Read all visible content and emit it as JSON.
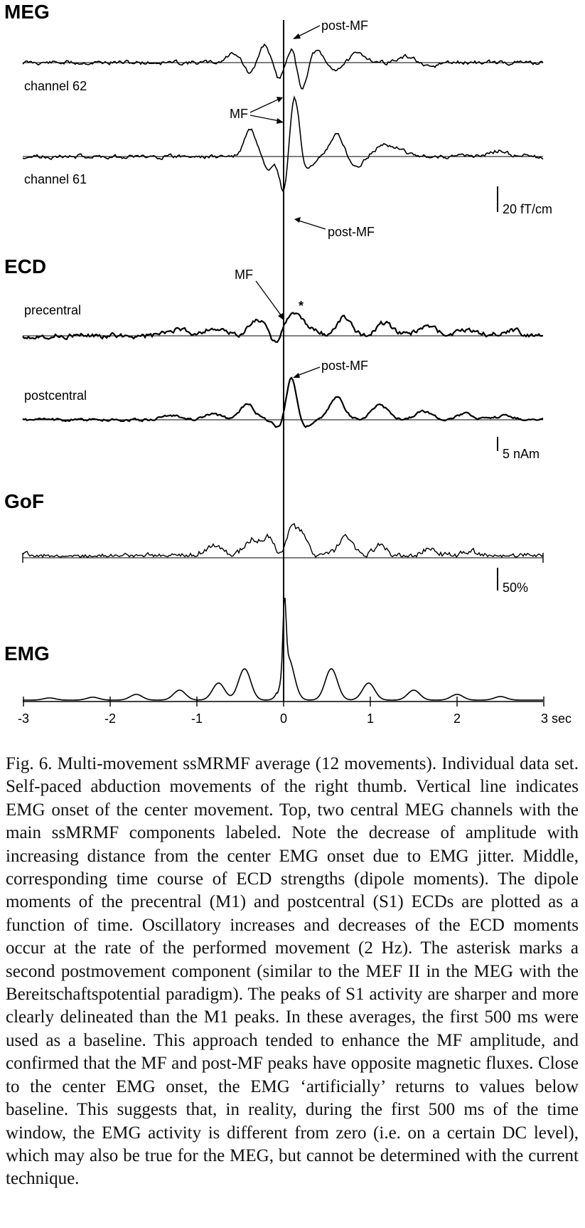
{
  "panels": {
    "meg": {
      "title": "MEG",
      "channels": [
        "channel 62",
        "channel 61"
      ],
      "labels": {
        "post_mf_top": "post-MF",
        "mf": "MF",
        "post_mf_bottom": "post-MF"
      },
      "scale": "20 fT/cm"
    },
    "ecd": {
      "title": "ECD",
      "sources": [
        "precentral",
        "postcentral"
      ],
      "labels": {
        "mf": "MF",
        "asterisk": "*",
        "post_mf": "post-MF"
      },
      "scale": "5 nAm"
    },
    "gof": {
      "title": "GoF",
      "scale": "50%"
    },
    "emg": {
      "title": "EMG"
    }
  },
  "axis": {
    "ticks": [
      -3,
      -2,
      -1,
      0,
      1,
      2,
      3
    ],
    "tick_labels": [
      "-3",
      "-2",
      "-1",
      "0",
      "1",
      "2",
      "3 sec"
    ]
  },
  "caption": "Fig. 6. Multi-movement ssMRMF average (12 movements). Individual data set. Self-paced abduction movements of the right thumb. Vertical line indicates EMG onset of the center movement. Top, two central MEG channels with the main ssMRMF components labeled. Note the decrease of amplitude with increasing distance from the center EMG onset due to EMG jitter. Middle, corresponding time course of ECD strengths (dipole moments). The dipole moments of the precentral (M1) and postcentral (S1) ECDs are plotted as a function of time. Oscillatory increases and decreases of the ECD moments occur at the rate of the performed movement (2 Hz). The asterisk marks a second postmovement component (similar to the MEF II in the MEG with the Bereitschaftspotential paradigm). The peaks of S1 activity are sharper and more clearly delineated than the M1 peaks. In these averages, the first 500 ms were used as a baseline. This approach tended to enhance the MF amplitude, and confirmed that the MF and post-MF peaks have opposite magnetic fluxes. Close to the center EMG onset, the EMG ‘artificially’ returns to values below baseline. This suggests that, in reality, during the first 500 ms of the time window, the EMG activity is different from zero (i.e. on a certain DC level), which may also be true for the MEG, but cannot be determined with the current technique."
}
